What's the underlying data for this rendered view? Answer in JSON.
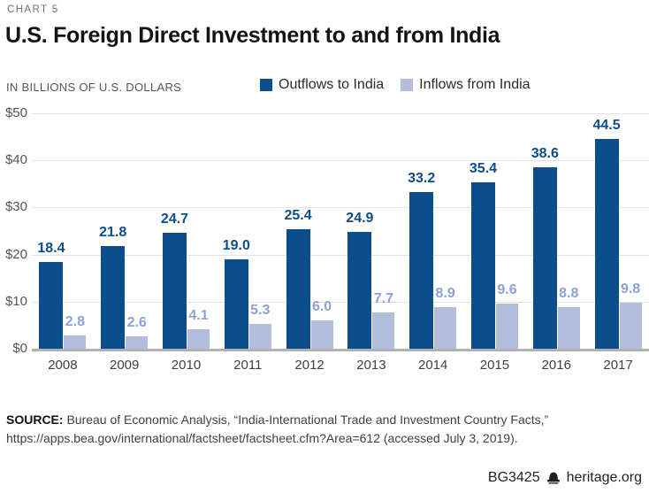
{
  "header": {
    "kicker": "CHART 5",
    "title": "U.S. Foreign Direct Investment to and from India"
  },
  "chart_data": {
    "type": "bar",
    "title": "U.S. Foreign Direct Investment to and from India",
    "unit_label": "IN BILLIONS OF U.S. DOLLARS",
    "categories": [
      "2008",
      "2009",
      "2010",
      "2011",
      "2012",
      "2013",
      "2014",
      "2015",
      "2016",
      "2017"
    ],
    "series": [
      {
        "name": "Outflows to India",
        "color": "#0c4d8c",
        "label_color": "#0c4d8c",
        "values": [
          18.4,
          21.8,
          24.7,
          19.0,
          25.4,
          24.9,
          33.2,
          35.4,
          38.6,
          44.5
        ],
        "labels": [
          "18.4",
          "21.8",
          "24.7",
          "19.0",
          "25.4",
          "24.9",
          "33.2",
          "35.4",
          "38.6",
          "44.5"
        ]
      },
      {
        "name": "Inflows from India",
        "color": "#b3bedc",
        "label_color": "#8ba3d3",
        "values": [
          2.8,
          2.6,
          4.1,
          5.3,
          6.0,
          7.7,
          8.9,
          9.6,
          8.8,
          9.8
        ],
        "labels": [
          "2.8",
          "2.6",
          "4.1",
          "5.3",
          "6.0",
          "7.7",
          "8.9",
          "9.6",
          "8.8",
          "9.8"
        ]
      }
    ],
    "ylim": [
      0,
      50
    ],
    "yticks": [
      "$50",
      "$40",
      "$30",
      "$20",
      "$10",
      "$0"
    ],
    "grid": true,
    "legend_position": "top"
  },
  "source": {
    "label": "SOURCE:",
    "text": "Bureau of Economic Analysis, “India-International Trade and Investment Country Facts,”",
    "line2": "https://apps.bea.gov/international/factsheet/factsheet.cfm?Area=612 (accessed July 3, 2019)."
  },
  "footer": {
    "doc_id": "BG3425",
    "site": "heritage.org"
  }
}
